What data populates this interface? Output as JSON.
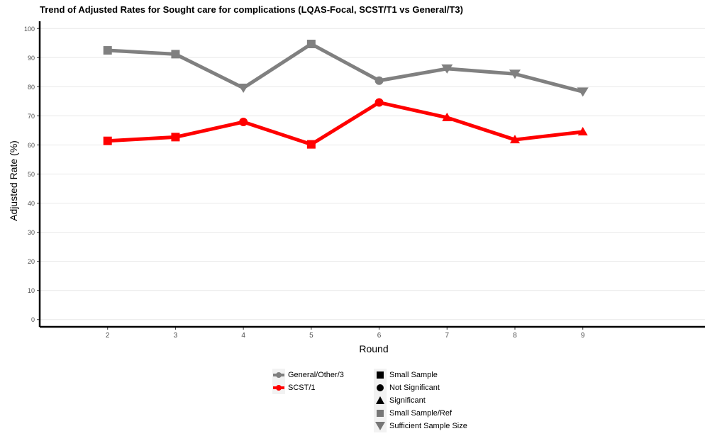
{
  "chart_data": {
    "type": "line",
    "title": "Trend of Adjusted Rates for Sought care for complications (LQAS-Focal, SCST/T1 vs General/T3)",
    "xlabel": "Round",
    "ylabel": "Adjusted Rate (%)",
    "x": [
      2,
      3,
      4,
      5,
      6,
      7,
      8,
      9
    ],
    "xlim": [
      1.0,
      10.8
    ],
    "ylim": [
      -2.5,
      102.5
    ],
    "yticks": [
      0,
      10,
      20,
      30,
      40,
      50,
      60,
      70,
      80,
      90,
      100
    ],
    "grid": true,
    "legend_position": "bottom",
    "series": [
      {
        "name": "General/Other/3",
        "color": "#808080",
        "values": [
          92.5,
          91.2,
          79.6,
          94.7,
          82.1,
          86.2,
          84.4,
          78.3
        ],
        "markers": [
          "square",
          "square",
          "triangle-down",
          "square",
          "circle",
          "triangle-down",
          "triangle-down",
          "triangle-down"
        ]
      },
      {
        "name": "SCST/1",
        "color": "#ff0000",
        "values": [
          61.4,
          62.7,
          67.9,
          60.2,
          74.6,
          69.4,
          61.8,
          64.5
        ],
        "markers": [
          "square",
          "square",
          "circle",
          "square",
          "circle",
          "triangle",
          "triangle",
          "triangle"
        ]
      }
    ],
    "shape_legend": [
      {
        "label": "Small Sample",
        "shape": "square",
        "color": "#000000"
      },
      {
        "label": "Not Significant",
        "shape": "circle",
        "color": "#000000"
      },
      {
        "label": "Significant",
        "shape": "triangle",
        "color": "#000000"
      },
      {
        "label": "Small Sample/Ref",
        "shape": "square",
        "color": "#777777"
      },
      {
        "label": "Sufficient Sample Size",
        "shape": "triangle-down",
        "color": "#777777"
      }
    ]
  }
}
